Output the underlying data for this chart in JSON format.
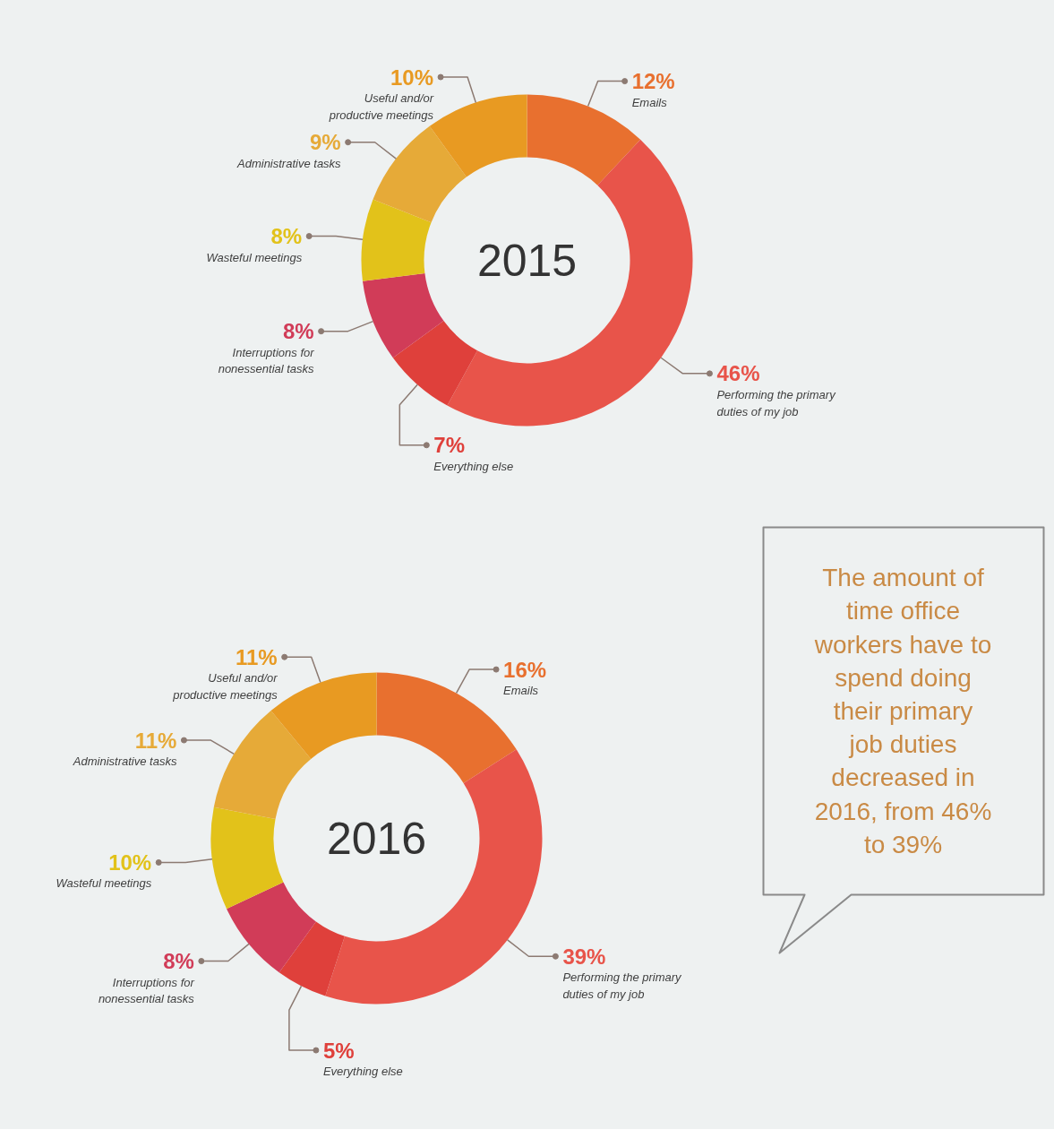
{
  "chart_data": [
    {
      "type": "donut",
      "title": "2015",
      "categories": [
        "Emails",
        "Performing the primary duties of my job",
        "Everything else",
        "Interruptions for nonessential tasks",
        "Wasteful meetings",
        "Administrative tasks",
        "Useful and/or productive meetings"
      ],
      "values": [
        12,
        46,
        7,
        8,
        8,
        9,
        10
      ],
      "colors": [
        "#e8702f",
        "#e8544a",
        "#df403b",
        "#d13c58",
        "#e2c21a",
        "#e6aa38",
        "#e89a22"
      ],
      "value_labels": [
        "12%",
        "46%",
        "7%",
        "8%",
        "8%",
        "9%",
        "10%"
      ]
    },
    {
      "type": "donut",
      "title": "2016",
      "categories": [
        "Emails",
        "Performing the primary duties of my job",
        "Everything else",
        "Interruptions for nonessential tasks",
        "Wasteful meetings",
        "Administrative tasks",
        "Useful and/or productive meetings"
      ],
      "values": [
        16,
        39,
        5,
        8,
        10,
        11,
        11
      ],
      "colors": [
        "#e8702f",
        "#e8544a",
        "#df403b",
        "#d13c58",
        "#e2c21a",
        "#e6aa38",
        "#e89a22"
      ],
      "value_labels": [
        "16%",
        "39%",
        "5%",
        "8%",
        "10%",
        "11%",
        "11%"
      ]
    },
    {
      "type": "other",
      "annotations": [
        "The amount of time office workers have to spend doing their primary job duties decreased in 2016, from 46% to 39%"
      ]
    }
  ]
}
